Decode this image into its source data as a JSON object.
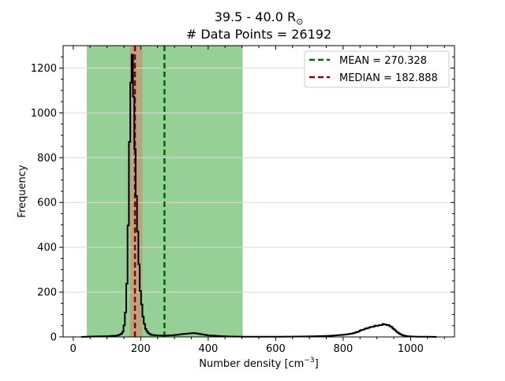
{
  "chart_data": {
    "type": "histogram",
    "title_line1": "39.5 - 40.0 R",
    "title_symbol": "⊙",
    "title_line2": "# Data Points = 26192",
    "xlabel": "Number density [cm",
    "xlabel_exp": "−3",
    "xlabel_close": "]",
    "ylabel": "Frequency",
    "xlim": [
      -30,
      1130
    ],
    "ylim": [
      0,
      1300
    ],
    "xticks": [
      0,
      200,
      400,
      600,
      800,
      1000
    ],
    "yticks": [
      0,
      200,
      400,
      600,
      800,
      1000,
      1200
    ],
    "xtick_labels": [
      "0",
      "200",
      "400",
      "600",
      "800",
      "1000"
    ],
    "ytick_labels": [
      "0",
      "200",
      "400",
      "600",
      "800",
      "1000",
      "1200"
    ],
    "grid": "horizontal",
    "legend_position": "top-right",
    "shaded_regions": [
      {
        "from": 40,
        "to": 502,
        "color": "#7cc47c"
      },
      {
        "from": 168,
        "to": 205,
        "color": "#c09a7a"
      }
    ],
    "reference_lines": [
      {
        "name": "MEAN = 270.328",
        "x": 270.328,
        "color": "#006400"
      },
      {
        "name": "MEDIAN = 182.888",
        "x": 182.888,
        "color": "#8b0000"
      }
    ],
    "histogram": {
      "bin_width": 4,
      "points": [
        [
          25,
          0
        ],
        [
          60,
          2
        ],
        [
          100,
          3
        ],
        [
          130,
          6
        ],
        [
          142,
          12
        ],
        [
          148,
          25
        ],
        [
          152,
          60
        ],
        [
          156,
          130
        ],
        [
          160,
          280
        ],
        [
          163,
          500
        ],
        [
          166,
          760
        ],
        [
          168,
          980
        ],
        [
          170,
          1120
        ],
        [
          172,
          1230
        ],
        [
          174,
          1245
        ],
        [
          176,
          1200
        ],
        [
          178,
          1120
        ],
        [
          180,
          1010
        ],
        [
          182,
          900
        ],
        [
          184,
          790
        ],
        [
          186,
          690
        ],
        [
          188,
          590
        ],
        [
          190,
          500
        ],
        [
          192,
          420
        ],
        [
          194,
          350
        ],
        [
          196,
          290
        ],
        [
          198,
          235
        ],
        [
          200,
          190
        ],
        [
          204,
          130
        ],
        [
          208,
          80
        ],
        [
          212,
          50
        ],
        [
          216,
          32
        ],
        [
          222,
          18
        ],
        [
          230,
          10
        ],
        [
          245,
          7
        ],
        [
          270,
          6
        ],
        [
          300,
          8
        ],
        [
          320,
          12
        ],
        [
          340,
          15
        ],
        [
          355,
          17
        ],
        [
          365,
          16
        ],
        [
          380,
          12
        ],
        [
          400,
          7
        ],
        [
          430,
          4
        ],
        [
          460,
          2
        ],
        [
          500,
          1
        ],
        [
          560,
          1
        ],
        [
          620,
          1
        ],
        [
          680,
          2
        ],
        [
          720,
          3
        ],
        [
          760,
          5
        ],
        [
          790,
          8
        ],
        [
          810,
          11
        ],
        [
          830,
          16
        ],
        [
          845,
          24
        ],
        [
          860,
          33
        ],
        [
          870,
          38
        ],
        [
          880,
          43
        ],
        [
          890,
          47
        ],
        [
          900,
          50
        ],
        [
          910,
          53
        ],
        [
          920,
          57
        ],
        [
          930,
          55
        ],
        [
          940,
          48
        ],
        [
          950,
          36
        ],
        [
          960,
          22
        ],
        [
          970,
          12
        ],
        [
          980,
          6
        ],
        [
          990,
          3
        ],
        [
          1000,
          2
        ],
        [
          1020,
          1
        ],
        [
          1050,
          1
        ],
        [
          1075,
          0
        ]
      ]
    }
  }
}
